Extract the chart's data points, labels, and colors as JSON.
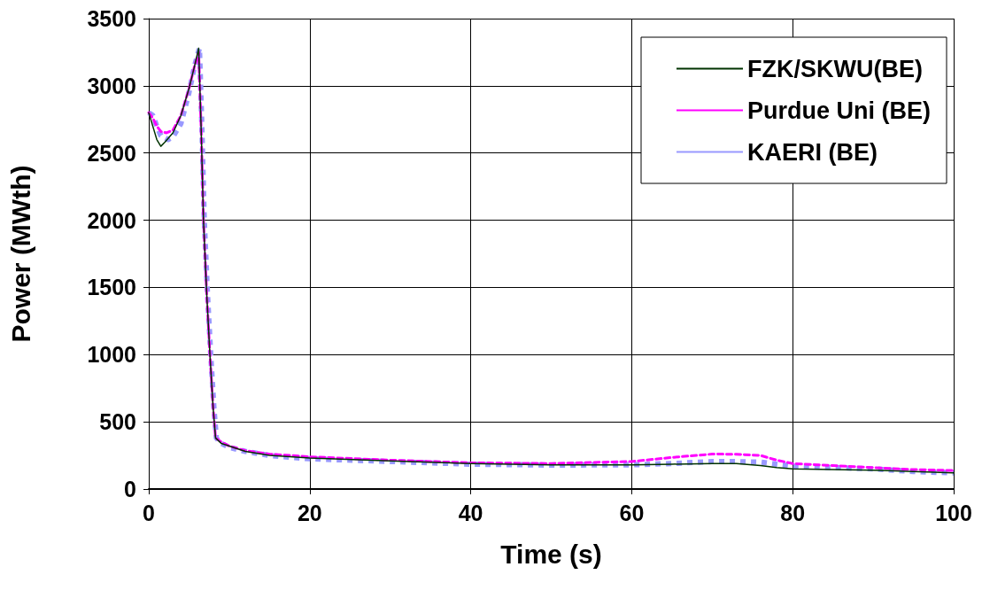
{
  "chart_data": {
    "type": "line",
    "xlabel": "Time (s)",
    "ylabel": "Power (MWth)",
    "xlim": [
      0,
      100
    ],
    "xticks": [
      0,
      20,
      40,
      60,
      80,
      100
    ],
    "ylim": [
      0,
      3500
    ],
    "yticks": [
      0,
      500,
      1000,
      1500,
      2000,
      2500,
      3000,
      3500
    ],
    "grid": true,
    "legend": "top right",
    "marker": "none",
    "series": [
      {
        "name": "FZK/SKWU(BE)",
        "color": "#003300",
        "line_style": "solid",
        "x": [
          0,
          0.5,
          1,
          1.5,
          2,
          3,
          4,
          5,
          5.7,
          6.2,
          6.5,
          6.8,
          7.2,
          7.6,
          8,
          8.3,
          9,
          10,
          12,
          15,
          20,
          30,
          40,
          50,
          60,
          65,
          70,
          73,
          76,
          78,
          80,
          85,
          90,
          95,
          100
        ],
        "values": [
          2800,
          2700,
          2600,
          2550,
          2580,
          2650,
          2780,
          2980,
          3150,
          3280,
          2700,
          2000,
          1450,
          1000,
          600,
          380,
          340,
          320,
          280,
          250,
          230,
          210,
          190,
          180,
          180,
          185,
          190,
          190,
          175,
          160,
          150,
          145,
          140,
          130,
          120
        ]
      },
      {
        "name": "Purdue Uni (BE)",
        "color": "#ff00ff",
        "line_style": "dashed",
        "x": [
          0,
          0.5,
          1,
          1.5,
          2.2,
          3,
          4,
          5,
          5.7,
          6.2,
          6.5,
          6.8,
          7.2,
          7.6,
          8,
          8.3,
          9,
          10,
          12,
          15,
          20,
          30,
          40,
          50,
          60,
          65,
          70,
          73,
          76,
          78,
          80,
          85,
          90,
          95,
          100
        ],
        "values": [
          2800,
          2760,
          2700,
          2660,
          2650,
          2670,
          2780,
          2980,
          3150,
          3250,
          2700,
          2000,
          1450,
          1000,
          600,
          380,
          350,
          320,
          285,
          260,
          240,
          215,
          195,
          190,
          205,
          235,
          260,
          259,
          250,
          215,
          190,
          175,
          160,
          145,
          138
        ]
      },
      {
        "name": "KAERI (BE)",
        "color": "#9999ff",
        "line_style": "dotted",
        "x": [
          0,
          0.5,
          1,
          1.5,
          2.4,
          3,
          4,
          5,
          5.7,
          6.3,
          6.6,
          6.9,
          7.3,
          7.7,
          8.1,
          8.4,
          9,
          10,
          12,
          15,
          20,
          30,
          40,
          50,
          60,
          65,
          70,
          73,
          76,
          78,
          80,
          85,
          90,
          95,
          100
        ],
        "values": [
          2800,
          2780,
          2700,
          2630,
          2600,
          2620,
          2720,
          2950,
          3150,
          3280,
          2700,
          2000,
          1450,
          1000,
          600,
          380,
          340,
          310,
          280,
          250,
          225,
          205,
          185,
          178,
          180,
          190,
          204,
          204,
          200,
          185,
          170,
          160,
          150,
          130,
          120
        ]
      }
    ]
  }
}
